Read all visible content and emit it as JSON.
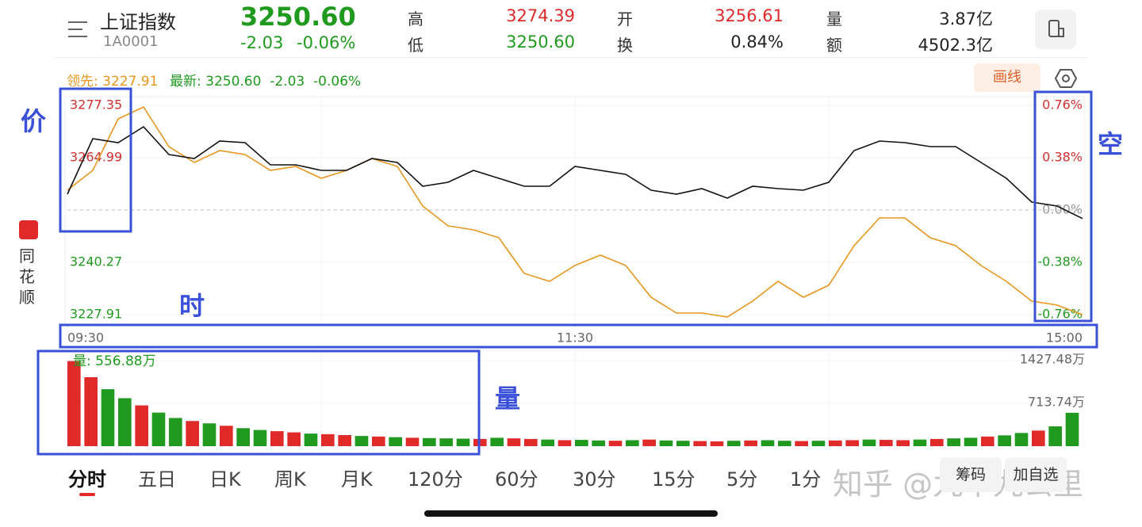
{
  "header": {
    "name": "上证指数",
    "code": "1A0001",
    "price": "3250.60",
    "change": "-2.03",
    "change_pct": "-0.06%",
    "stats": [
      {
        "label": "高",
        "value": "3274.39"
      },
      {
        "label": "开",
        "value": "3256.61"
      },
      {
        "label": "量",
        "value": "3.87亿"
      },
      {
        "label": "低",
        "value": "3250.60"
      },
      {
        "label": "换",
        "value": "0.84%"
      },
      {
        "label": "额",
        "value": "4502.3亿"
      }
    ]
  },
  "info": {
    "lead": "领先: 3227.91",
    "latest": "最新: 3250.60  -2.03  -0.06%",
    "draw_button": "画线"
  },
  "sidebar": "同花顺",
  "annotations": {
    "price": "价",
    "space": "空",
    "time": "时",
    "volume": "量"
  },
  "chart_data": [
    {
      "type": "line",
      "x": [
        0,
        6,
        12,
        18,
        24,
        30,
        36,
        42,
        48,
        54,
        60,
        66,
        72,
        78,
        84,
        90,
        96,
        102,
        108,
        114,
        120,
        126,
        132,
        138,
        144,
        150,
        156,
        162,
        168,
        174,
        180,
        186,
        192,
        198,
        204,
        210,
        216,
        222,
        228,
        234,
        240
      ],
      "xlim": [
        0,
        240
      ],
      "xticks": [
        {
          "value": 0,
          "label": "09:30"
        },
        {
          "value": 120,
          "label": "11:30"
        },
        {
          "value": 240,
          "label": "15:00"
        }
      ],
      "ylim": [
        3227.91,
        3277.35
      ],
      "yticks": [
        3277.35,
        3264.99,
        3240.27,
        3227.91
      ],
      "y2lim": [
        -0.76,
        0.76
      ],
      "y2ticks": [
        {
          "value": 0.76,
          "label": "0.76%"
        },
        {
          "value": 0.38,
          "label": "0.38%"
        },
        {
          "value": 0,
          "label": "0.00%"
        },
        {
          "value": -0.38,
          "label": "-0.38%"
        },
        {
          "value": -0.76,
          "label": "-0.76%"
        }
      ],
      "series": [
        {
          "color": "#111111",
          "values": [
            3256.37,
            3269.48,
            3268.55,
            3272.29,
            3265.74,
            3264.8,
            3268.92,
            3268.55,
            3263.3,
            3263.3,
            3261.99,
            3261.99,
            3264.8,
            3263.86,
            3258.25,
            3259.18,
            3261.99,
            3260.12,
            3258.25,
            3258.25,
            3262.93,
            3261.99,
            3261.05,
            3257.31,
            3256.37,
            3257.68,
            3255.44,
            3258.25,
            3257.68,
            3257.31,
            3259.18,
            3266.67,
            3268.92,
            3268.55,
            3267.61,
            3267.61,
            3263.86,
            3260.12,
            3254.5,
            3253.56,
            3250.6
          ]
        },
        {
          "color": "#e8961e",
          "values": [
            3257.31,
            3262.0,
            3274.17,
            3276.98,
            3267.61,
            3263.86,
            3266.67,
            3265.74,
            3261.99,
            3262.93,
            3260.12,
            3261.99,
            3264.8,
            3262.93,
            3253.56,
            3248.88,
            3247.94,
            3246.07,
            3237.64,
            3235.77,
            3239.52,
            3241.95,
            3239.52,
            3232.02,
            3228.28,
            3228.28,
            3227.35,
            3231.09,
            3235.77,
            3232.02,
            3234.83,
            3244.2,
            3250.75,
            3250.75,
            3246.07,
            3244.2,
            3239.52,
            3235.77,
            3231.09,
            3230.15,
            3227.91
          ]
        }
      ]
    },
    {
      "type": "bar",
      "title": "量: 556.88万",
      "x": [
        0,
        4,
        8,
        12,
        16,
        20,
        24,
        28,
        32,
        36,
        40,
        44,
        48,
        52,
        56,
        60,
        64,
        68,
        72,
        76,
        80,
        84,
        88,
        92,
        96,
        100,
        104,
        108,
        112,
        116,
        120,
        124,
        128,
        132,
        136,
        140,
        144,
        148,
        152,
        156,
        160,
        164,
        168,
        172,
        176,
        180,
        184,
        188,
        192,
        196,
        200,
        204,
        208,
        212,
        216,
        220,
        224,
        228,
        232,
        236
      ],
      "xlim": [
        0,
        240
      ],
      "ylim": [
        0,
        1427.48
      ],
      "yticks": [
        {
          "value": 1427.48,
          "label": "1427.48万"
        },
        {
          "value": 713.74,
          "label": "713.74万"
        }
      ],
      "values": [
        1420,
        1150,
        950,
        800,
        680,
        560,
        470,
        420,
        380,
        340,
        300,
        270,
        250,
        230,
        210,
        200,
        185,
        170,
        160,
        150,
        140,
        135,
        130,
        125,
        120,
        140,
        130,
        120,
        110,
        100,
        105,
        95,
        90,
        100,
        110,
        95,
        90,
        85,
        80,
        90,
        95,
        100,
        90,
        85,
        90,
        95,
        100,
        110,
        105,
        100,
        110,
        120,
        130,
        140,
        160,
        180,
        220,
        260,
        330,
        556.88
      ],
      "colors": [
        "#e02a2a",
        "#e02a2a",
        "#1f9a1f",
        "#1f9a1f",
        "#e02a2a",
        "#1f9a1f",
        "#1f9a1f",
        "#e02a2a",
        "#1f9a1f",
        "#e02a2a",
        "#1f9a1f",
        "#1f9a1f",
        "#e02a2a",
        "#e02a2a",
        "#1f9a1f",
        "#e02a2a",
        "#e02a2a",
        "#1f9a1f",
        "#e02a2a",
        "#1f9a1f",
        "#e02a2a",
        "#1f9a1f",
        "#1f9a1f",
        "#1f9a1f",
        "#e02a2a",
        "#1f9a1f",
        "#e02a2a",
        "#e02a2a",
        "#1f9a1f",
        "#e02a2a",
        "#1f9a1f",
        "#1f9a1f",
        "#e02a2a",
        "#1f9a1f",
        "#e02a2a",
        "#1f9a1f",
        "#1f9a1f",
        "#e02a2a",
        "#e02a2a",
        "#1f9a1f",
        "#e02a2a",
        "#1f9a1f",
        "#1f9a1f",
        "#e02a2a",
        "#1f9a1f",
        "#e02a2a",
        "#e02a2a",
        "#1f9a1f",
        "#e02a2a",
        "#e02a2a",
        "#1f9a1f",
        "#e02a2a",
        "#1f9a1f",
        "#1f9a1f",
        "#e02a2a",
        "#1f9a1f",
        "#1f9a1f",
        "#e02a2a",
        "#1f9a1f",
        "#1f9a1f"
      ]
    }
  ],
  "tabs": [
    "分时",
    "五日",
    "日K",
    "周K",
    "月K",
    "120分",
    "60分",
    "30分",
    "15分",
    "5分",
    "1分"
  ],
  "buttons": [
    "筹码",
    "加自选"
  ],
  "watermark": "知乎 @九十九公里"
}
